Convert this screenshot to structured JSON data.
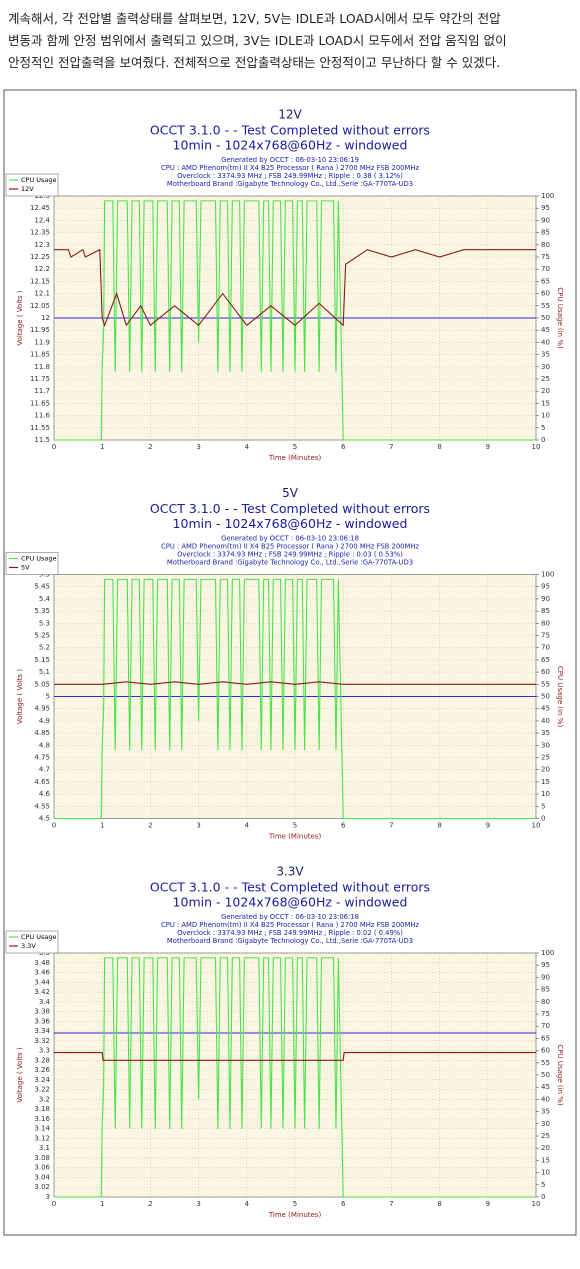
{
  "paragraph": [
    "계속해서, 각 전압별 출력상태를 살펴보면, 12V, 5V는 IDLE과 LOAD시에서 모두 약간의 전압",
    "변동과 함께 안정 범위에서 출력되고 있으며, 3V는 IDLE과 LOAD시 모두에서 전압 움직임 없이",
    "안정적인 전압출력을 보여줬다. 전체적으로 전압출력상태는 안정적이고 무난하다 할 수 있겠다."
  ],
  "chart_data": [
    {
      "type": "line",
      "title": "12V",
      "subtitle": [
        "OCCT 3.1.0 -  - Test Completed without errors",
        "10min - 1024x768@60Hz - windowed"
      ],
      "info": [
        "Generated by OCCT : 06-03-10 23:06:19",
        "CPU : AMD Phenom(tm) II X4 B25 Processor ( Rana ) 2700 MHz FSB 200MHz",
        "Overclock : 3374.93 MHz ; FSB 249.99MHz ; Ripple : 0.38 ( 3.12%)",
        "Motherboard Brand :Gigabyte Technology Co., Ltd.,Serie :GA-770TA-UD3"
      ],
      "xlabel": "Time (Minutes)",
      "ylabel": "Voltage ( Volts )",
      "y2label": "CPU Usage (in %)",
      "xlim": [
        0,
        10
      ],
      "xticks": [
        0,
        1,
        2,
        3,
        4,
        5,
        6,
        7,
        8,
        9,
        10
      ],
      "ylim": [
        11.5,
        12.5
      ],
      "yticks": [
        11.5,
        11.55,
        11.6,
        11.65,
        11.7,
        11.75,
        11.8,
        11.85,
        11.9,
        11.95,
        12,
        12.05,
        12.1,
        12.15,
        12.2,
        12.25,
        12.3,
        12.35,
        12.4,
        12.45,
        12.5
      ],
      "y2lim": [
        0,
        100
      ],
      "y2ticks": [
        0,
        5,
        10,
        15,
        20,
        25,
        30,
        35,
        40,
        45,
        50,
        55,
        60,
        65,
        70,
        75,
        80,
        85,
        90,
        95,
        100
      ],
      "grid": true,
      "legend": "upper left",
      "reference_line": {
        "value": 12,
        "color": "#2a2ae0"
      },
      "series": [
        {
          "name": "CPU Usage",
          "color": "#4be24b",
          "axis": "y2",
          "x": [
            0,
            0.98,
            1.0,
            1.03,
            1.05,
            1.1,
            1.22,
            1.27,
            1.32,
            1.37,
            1.52,
            1.57,
            1.62,
            1.77,
            1.82,
            1.87,
            2.05,
            2.1,
            2.15,
            2.35,
            2.4,
            2.45,
            2.6,
            2.65,
            2.7,
            2.95,
            3.0,
            3.05,
            3.35,
            3.4,
            3.45,
            3.6,
            3.65,
            3.7,
            3.85,
            3.9,
            3.95,
            4.25,
            4.3,
            4.35,
            4.45,
            4.5,
            4.55,
            4.7,
            4.75,
            4.8,
            4.95,
            5.0,
            5.05,
            5.15,
            5.2,
            5.25,
            5.45,
            5.5,
            5.55,
            5.8,
            5.85,
            5.9,
            6.0,
            10
          ],
          "values": [
            0,
            0,
            30,
            45,
            98,
            98,
            98,
            28,
            98,
            98,
            98,
            28,
            98,
            98,
            28,
            98,
            98,
            28,
            98,
            98,
            28,
            98,
            98,
            28,
            98,
            98,
            40,
            98,
            98,
            28,
            98,
            98,
            28,
            98,
            98,
            28,
            98,
            98,
            28,
            98,
            98,
            28,
            98,
            98,
            28,
            98,
            98,
            28,
            98,
            98,
            28,
            98,
            98,
            28,
            98,
            98,
            28,
            98,
            0,
            0
          ]
        },
        {
          "name": "12V",
          "color": "#8b1a1a",
          "x": [
            0,
            0.3,
            0.35,
            0.6,
            0.65,
            0.95,
            1.0,
            1.05,
            1.3,
            1.5,
            1.8,
            2.0,
            2.5,
            3.0,
            3.5,
            4.0,
            4.5,
            5.0,
            5.5,
            6.0,
            6.05,
            6.5,
            7.0,
            7.5,
            8.0,
            8.5,
            9.0,
            9.5,
            10
          ],
          "values": [
            12.28,
            12.28,
            12.25,
            12.28,
            12.25,
            12.28,
            12.0,
            11.97,
            12.1,
            11.97,
            12.05,
            11.97,
            12.05,
            11.97,
            12.1,
            11.97,
            12.05,
            11.97,
            12.06,
            11.97,
            12.22,
            12.28,
            12.25,
            12.28,
            12.25,
            12.28,
            12.28,
            12.28,
            12.28
          ]
        }
      ]
    },
    {
      "type": "line",
      "title": "5V",
      "subtitle": [
        "OCCT 3.1.0 -  - Test Completed without errors",
        "10min - 1024x768@60Hz - windowed"
      ],
      "info": [
        "Generated by OCCT : 06-03-10 23:06:18",
        "CPU : AMD Phenom(tm) II X4 B25 Processor ( Rana ) 2700 MHz FSB 200MHz",
        "Overclock : 3374.93 MHz ; FSB 249.99MHz ; Ripple : 0.03 ( 0.53%)",
        "Motherboard Brand :Gigabyte Technology Co., Ltd.,Serie :GA-770TA-UD3"
      ],
      "xlabel": "Time (Minutes)",
      "ylabel": "Voltage ( Volts )",
      "y2label": "CPU Usage (in %)",
      "xlim": [
        0,
        10
      ],
      "xticks": [
        0,
        1,
        2,
        3,
        4,
        5,
        6,
        7,
        8,
        9,
        10
      ],
      "ylim": [
        4.5,
        5.5
      ],
      "yticks": [
        4.5,
        4.55,
        4.6,
        4.65,
        4.7,
        4.75,
        4.8,
        4.85,
        4.9,
        4.95,
        5,
        5.05,
        5.1,
        5.15,
        5.2,
        5.25,
        5.3,
        5.35,
        5.4,
        5.45,
        5.5
      ],
      "y2lim": [
        0,
        100
      ],
      "y2ticks": [
        0,
        5,
        10,
        15,
        20,
        25,
        30,
        35,
        40,
        45,
        50,
        55,
        60,
        65,
        70,
        75,
        80,
        85,
        90,
        95,
        100
      ],
      "grid": true,
      "legend": "upper left",
      "reference_line": {
        "value": 5,
        "color": "#2a2ae0"
      },
      "series": [
        {
          "name": "CPU Usage",
          "color": "#4be24b",
          "axis": "y2",
          "x": [
            0,
            0.98,
            1.0,
            1.03,
            1.05,
            1.1,
            1.22,
            1.27,
            1.32,
            1.37,
            1.52,
            1.57,
            1.62,
            1.77,
            1.82,
            1.87,
            2.05,
            2.1,
            2.15,
            2.35,
            2.4,
            2.45,
            2.6,
            2.65,
            2.7,
            2.95,
            3.0,
            3.05,
            3.35,
            3.4,
            3.45,
            3.6,
            3.65,
            3.7,
            3.85,
            3.9,
            3.95,
            4.25,
            4.3,
            4.35,
            4.45,
            4.5,
            4.55,
            4.7,
            4.75,
            4.8,
            4.95,
            5.0,
            5.05,
            5.15,
            5.2,
            5.25,
            5.45,
            5.5,
            5.55,
            5.8,
            5.85,
            5.9,
            6.0,
            10
          ],
          "values": [
            0,
            0,
            30,
            45,
            98,
            98,
            98,
            28,
            98,
            98,
            98,
            28,
            98,
            98,
            28,
            98,
            98,
            28,
            98,
            98,
            28,
            98,
            98,
            28,
            98,
            98,
            40,
            98,
            98,
            28,
            98,
            98,
            28,
            98,
            98,
            28,
            98,
            98,
            28,
            98,
            98,
            28,
            98,
            98,
            28,
            98,
            98,
            28,
            98,
            98,
            28,
            98,
            98,
            28,
            98,
            98,
            28,
            98,
            0,
            0
          ]
        },
        {
          "name": "5V",
          "color": "#8b1a1a",
          "x": [
            0,
            1,
            1.5,
            2,
            2.5,
            3,
            3.5,
            4,
            4.5,
            5,
            5.5,
            6,
            10
          ],
          "values": [
            5.05,
            5.05,
            5.06,
            5.05,
            5.06,
            5.05,
            5.06,
            5.05,
            5.06,
            5.05,
            5.06,
            5.05,
            5.05
          ]
        }
      ]
    },
    {
      "type": "line",
      "title": "3.3V",
      "subtitle": [
        "OCCT 3.1.0 -  - Test Completed without errors",
        "10min - 1024x768@60Hz - windowed"
      ],
      "info": [
        "Generated by OCCT : 06-03-10 23:06:18",
        "CPU : AMD Phenom(tm) II X4 B25 Processor ( Rana ) 2700 MHz FSB 200MHz",
        "Overclock : 3374.93 MHz ; FSB 249.99MHz ; Ripple : 0.02 ( 0.49%)",
        "Motherboard Brand :Gigabyte Technology Co., Ltd.,Serie :GA-770TA-UD3"
      ],
      "xlabel": "Time (Minutes)",
      "ylabel": "Voltage ( Volts )",
      "y2label": "CPU Usage (in %)",
      "xlim": [
        0,
        10
      ],
      "xticks": [
        0,
        1,
        2,
        3,
        4,
        5,
        6,
        7,
        8,
        9,
        10
      ],
      "ylim": [
        3,
        3.5
      ],
      "yticks": [
        3,
        3.02,
        3.04,
        3.06,
        3.08,
        3.1,
        3.12,
        3.14,
        3.16,
        3.18,
        3.2,
        3.22,
        3.24,
        3.26,
        3.28,
        3.3,
        3.32,
        3.34,
        3.36,
        3.38,
        3.4,
        3.42,
        3.44,
        3.46,
        3.48,
        3.5
      ],
      "y2lim": [
        0,
        100
      ],
      "y2ticks": [
        0,
        5,
        10,
        15,
        20,
        25,
        30,
        35,
        40,
        45,
        50,
        55,
        60,
        65,
        70,
        75,
        80,
        85,
        90,
        95,
        100
      ],
      "grid": true,
      "legend": "upper left",
      "reference_line": {
        "value": 3.336,
        "color": "#2a2ae0"
      },
      "series": [
        {
          "name": "CPU Usage",
          "color": "#4be24b",
          "axis": "y2",
          "x": [
            0,
            0.98,
            1.0,
            1.03,
            1.05,
            1.1,
            1.22,
            1.27,
            1.32,
            1.37,
            1.52,
            1.57,
            1.62,
            1.77,
            1.82,
            1.87,
            2.05,
            2.1,
            2.15,
            2.35,
            2.4,
            2.45,
            2.6,
            2.65,
            2.7,
            2.95,
            3.0,
            3.05,
            3.35,
            3.4,
            3.45,
            3.6,
            3.65,
            3.7,
            3.85,
            3.9,
            3.95,
            4.25,
            4.3,
            4.35,
            4.45,
            4.5,
            4.55,
            4.7,
            4.75,
            4.8,
            4.95,
            5.0,
            5.05,
            5.15,
            5.2,
            5.25,
            5.45,
            5.5,
            5.55,
            5.8,
            5.85,
            5.9,
            6.0,
            10
          ],
          "values": [
            0,
            0,
            30,
            45,
            98,
            98,
            98,
            28,
            98,
            98,
            98,
            28,
            98,
            98,
            28,
            98,
            98,
            28,
            98,
            98,
            28,
            98,
            98,
            28,
            98,
            98,
            40,
            98,
            98,
            28,
            98,
            98,
            28,
            98,
            98,
            28,
            98,
            98,
            28,
            98,
            98,
            28,
            98,
            98,
            28,
            98,
            98,
            28,
            98,
            98,
            28,
            98,
            98,
            28,
            98,
            98,
            28,
            98,
            0,
            0
          ]
        },
        {
          "name": "3.3V",
          "color": "#8b1a1a",
          "x": [
            0,
            1,
            1.02,
            6,
            6.02,
            10
          ],
          "values": [
            3.296,
            3.296,
            3.28,
            3.28,
            3.296,
            3.296
          ]
        }
      ]
    }
  ]
}
